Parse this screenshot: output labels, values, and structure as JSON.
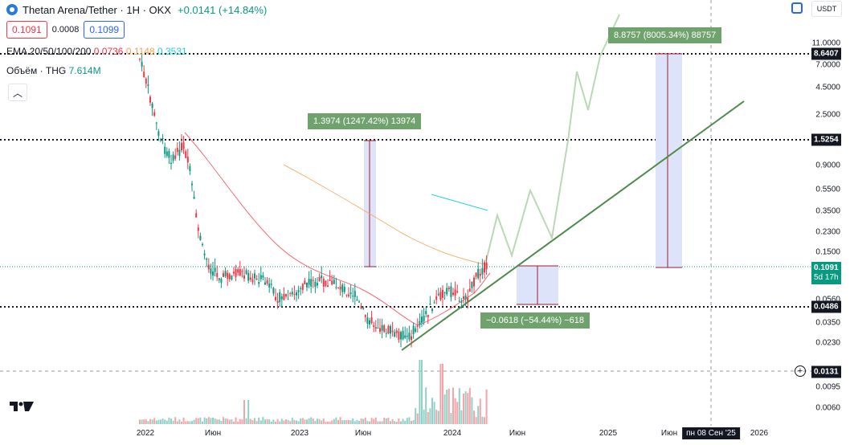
{
  "header": {
    "title": "Thetan Arena/Tether · 1H · OKX",
    "change": "+0.0141 (+14.84%)",
    "sell_price": "0.1091",
    "spread": "0.0008",
    "buy_price": "0.1099",
    "ema_label": "EMA 20/50/100/200",
    "ema_values": [
      "0.0736",
      "0.1148",
      "0.3531"
    ],
    "volume_label": "Объём · THG",
    "volume_value": "7.614M",
    "collapse_icon": "chevron-up-icon",
    "currency": "USDT"
  },
  "price_axis": {
    "ticks": [
      "11.0000",
      "7.0000",
      "4.5000",
      "2.5000",
      "0.9000",
      "0.5500",
      "0.3500",
      "0.2300",
      "0.1500",
      "0.0560",
      "0.0350",
      "0.0230",
      "0.0095",
      "0.0060"
    ],
    "tags": [
      "8.6407",
      "1.5254",
      "0.0486",
      "0.0131"
    ],
    "current_price": "0.1091",
    "countdown": "5d 17h"
  },
  "time_axis": {
    "ticks": [
      "2022",
      "Июн",
      "2023",
      "Июн",
      "2024",
      "Июн",
      "2025",
      "Июн",
      "2026"
    ],
    "crosshair_label": "пн 08 Сен '25"
  },
  "measurements": [
    {
      "text": "1.3974 (1247.42%) 13974"
    },
    {
      "text": "8.8757 (8005.34%) 88757"
    },
    {
      "text": "−0.0618 (−54.44%) −618"
    }
  ],
  "colors": {
    "up": "#089981",
    "down": "#f23645",
    "ema20": "#f23645",
    "ema50": "#f7a350",
    "ema100": "#20d1e2",
    "trend": "#4f8a4c",
    "projection": "#b9d9b5",
    "measure_fill": "#dde3f8"
  }
}
